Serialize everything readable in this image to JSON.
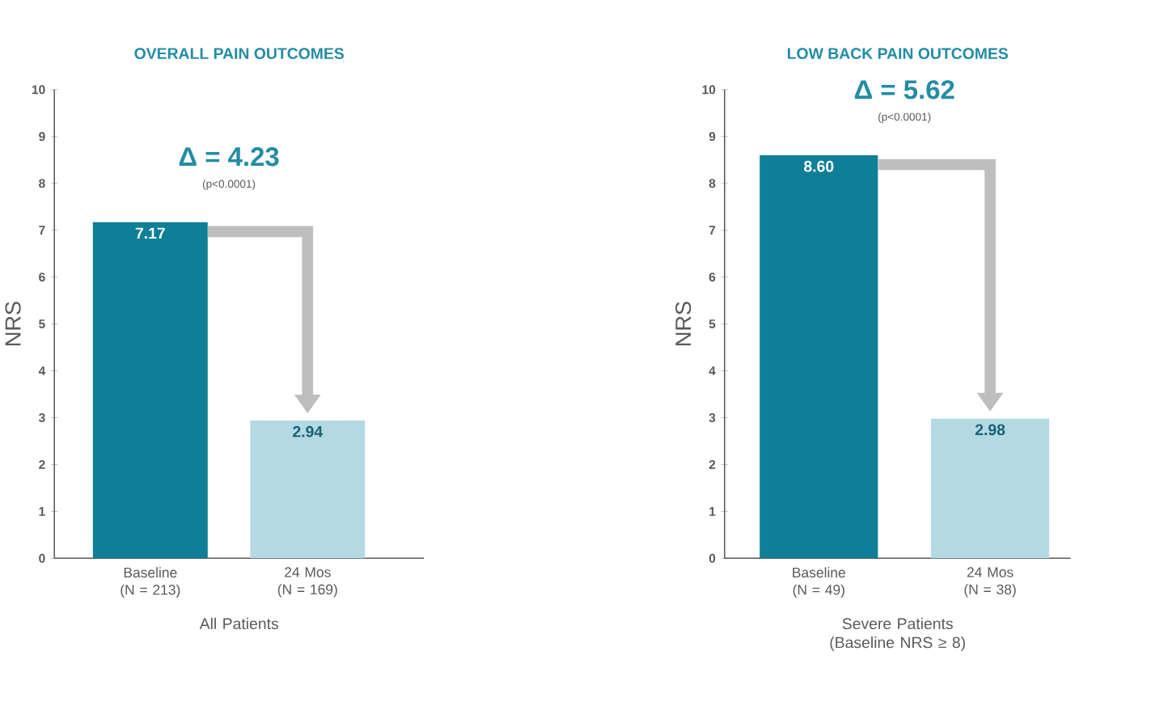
{
  "chart_data": [
    {
      "type": "bar",
      "title": "OVERALL PAIN OUTCOMES",
      "ylabel": "NRS",
      "xlabel": "All Patients",
      "categories": [
        "Baseline (N = 213)",
        "24 Mos (N = 169)"
      ],
      "values": [
        7.17,
        2.94
      ],
      "colors": [
        "#0e7f96",
        "#b3d9e3"
      ],
      "value_labels": [
        "7.17",
        "2.94"
      ],
      "ylim": [
        0,
        10
      ],
      "yticks": [
        0,
        1,
        2,
        3,
        4,
        5,
        6,
        7,
        8,
        9,
        10
      ],
      "annotations": [
        "Δ = 4.23",
        "(p<0.0001)"
      ]
    },
    {
      "type": "bar",
      "title": "LOW BACK PAIN OUTCOMES",
      "ylabel": "NRS",
      "xlabel": "Severe Patients (Baseline NRS ≥ 8)",
      "categories": [
        "Baseline (N = 49)",
        "24 Mos (N = 38)"
      ],
      "values": [
        8.6,
        2.98
      ],
      "colors": [
        "#0e7f96",
        "#b3d9e3"
      ],
      "value_labels": [
        "8.60",
        "2.98"
      ],
      "ylim": [
        0,
        10
      ],
      "yticks": [
        0,
        1,
        2,
        3,
        4,
        5,
        6,
        7,
        8,
        9,
        10
      ],
      "annotations": [
        "Δ = 5.62",
        "(p<0.0001)"
      ]
    }
  ]
}
